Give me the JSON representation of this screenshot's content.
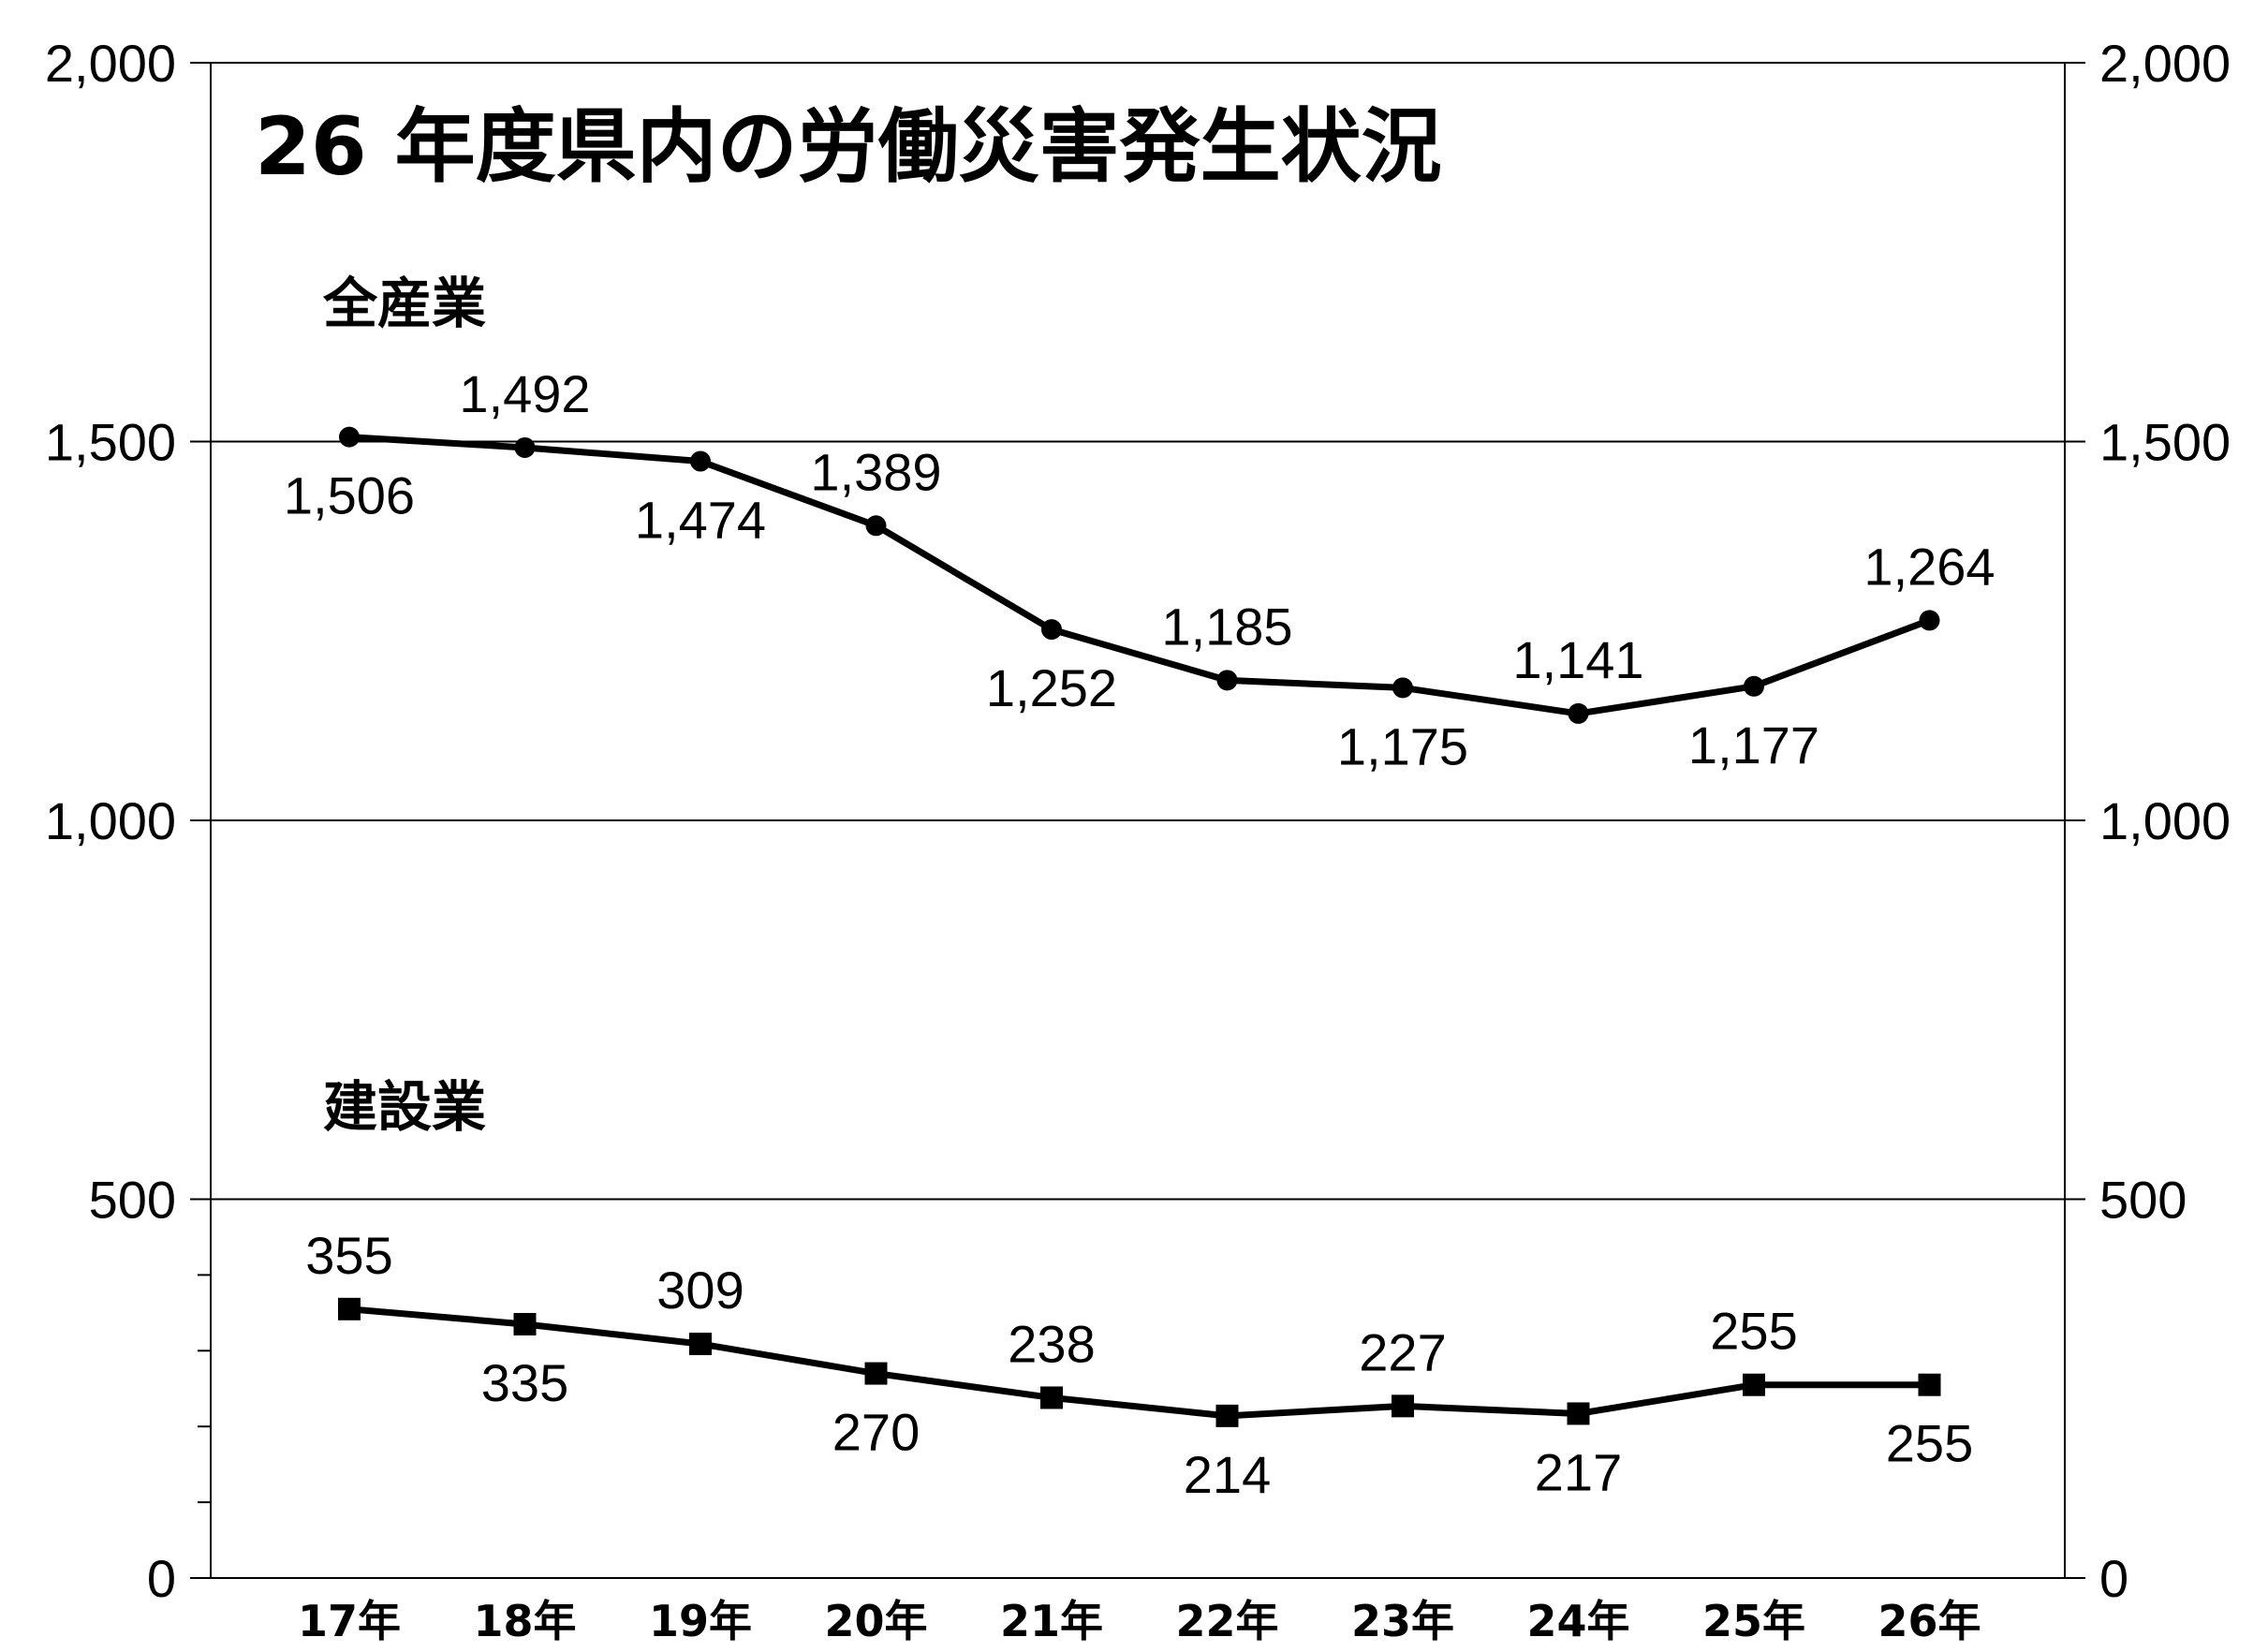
{
  "chart_data": {
    "type": "line",
    "title": "26 年度県内の労働災害発生状況",
    "categories": [
      "17年",
      "18年",
      "19年",
      "20年",
      "21年",
      "22年",
      "23年",
      "24年",
      "25年",
      "26年"
    ],
    "series": [
      {
        "name": "全産業",
        "marker": "circle",
        "values": [
          1506,
          1492,
          1474,
          1389,
          1252,
          1185,
          1175,
          1141,
          1177,
          1264
        ],
        "value_labels": [
          "1,506",
          "1,492",
          "1,474",
          "1,389",
          "1,252",
          "1,185",
          "1,175",
          "1,141",
          "1,177",
          "1,264"
        ]
      },
      {
        "name": "建設業",
        "marker": "square",
        "values": [
          355,
          335,
          309,
          270,
          238,
          214,
          227,
          217,
          255,
          255
        ],
        "value_labels": [
          "355",
          "335",
          "309",
          "270",
          "238",
          "214",
          "227",
          "217",
          "255",
          "255"
        ]
      }
    ],
    "ylim": [
      0,
      2000
    ],
    "yticks": [
      0,
      500,
      1000,
      1500,
      2000
    ],
    "ytick_labels": [
      "0",
      "500",
      "1,000",
      "1,500",
      "2,000"
    ],
    "right_axis": true,
    "grid": "horizontal at 500, 1000, 1500",
    "line_color": "#000000",
    "background": "#ffffff"
  }
}
